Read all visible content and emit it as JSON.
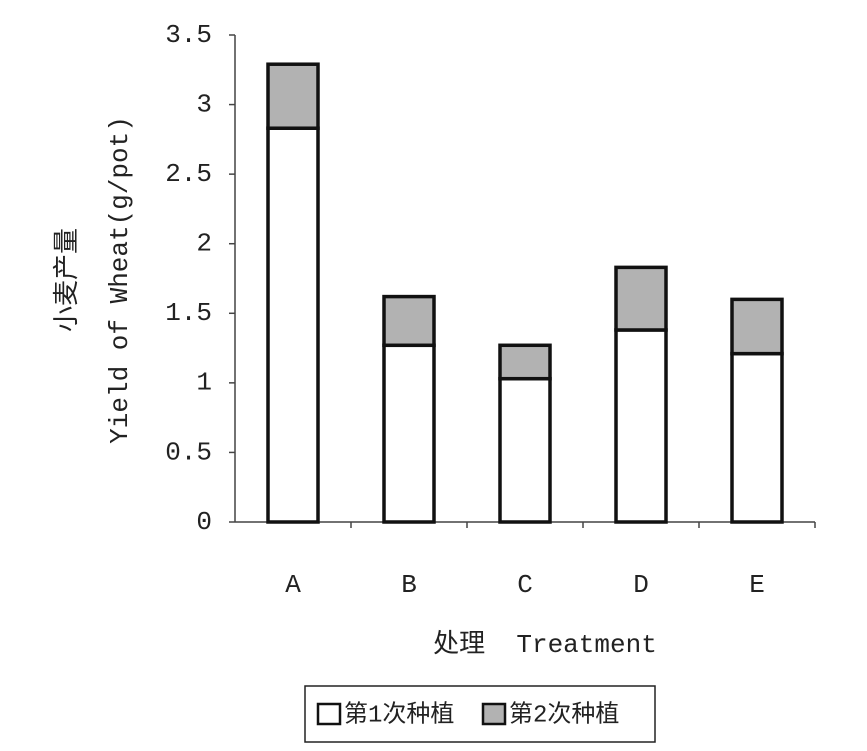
{
  "chart_data": {
    "type": "stacked-bar",
    "categories": [
      "A",
      "B",
      "C",
      "D",
      "E"
    ],
    "series": [
      {
        "name": "第1次种植",
        "color": "#ffffff",
        "values": [
          2.83,
          1.27,
          1.03,
          1.38,
          1.21
        ]
      },
      {
        "name": "第2次种植",
        "color": "#b2b2b2",
        "values": [
          0.46,
          0.35,
          0.24,
          0.45,
          0.39
        ]
      }
    ],
    "ylim": [
      0,
      3.5
    ],
    "yticks": [
      0,
      0.5,
      1,
      1.5,
      2,
      2.5,
      3,
      3.5
    ],
    "ylabel": [
      "小麦产量",
      "Yield of Wheat(g/pot)"
    ],
    "xlabel": "处理  Treatment",
    "legend": "bottom"
  }
}
